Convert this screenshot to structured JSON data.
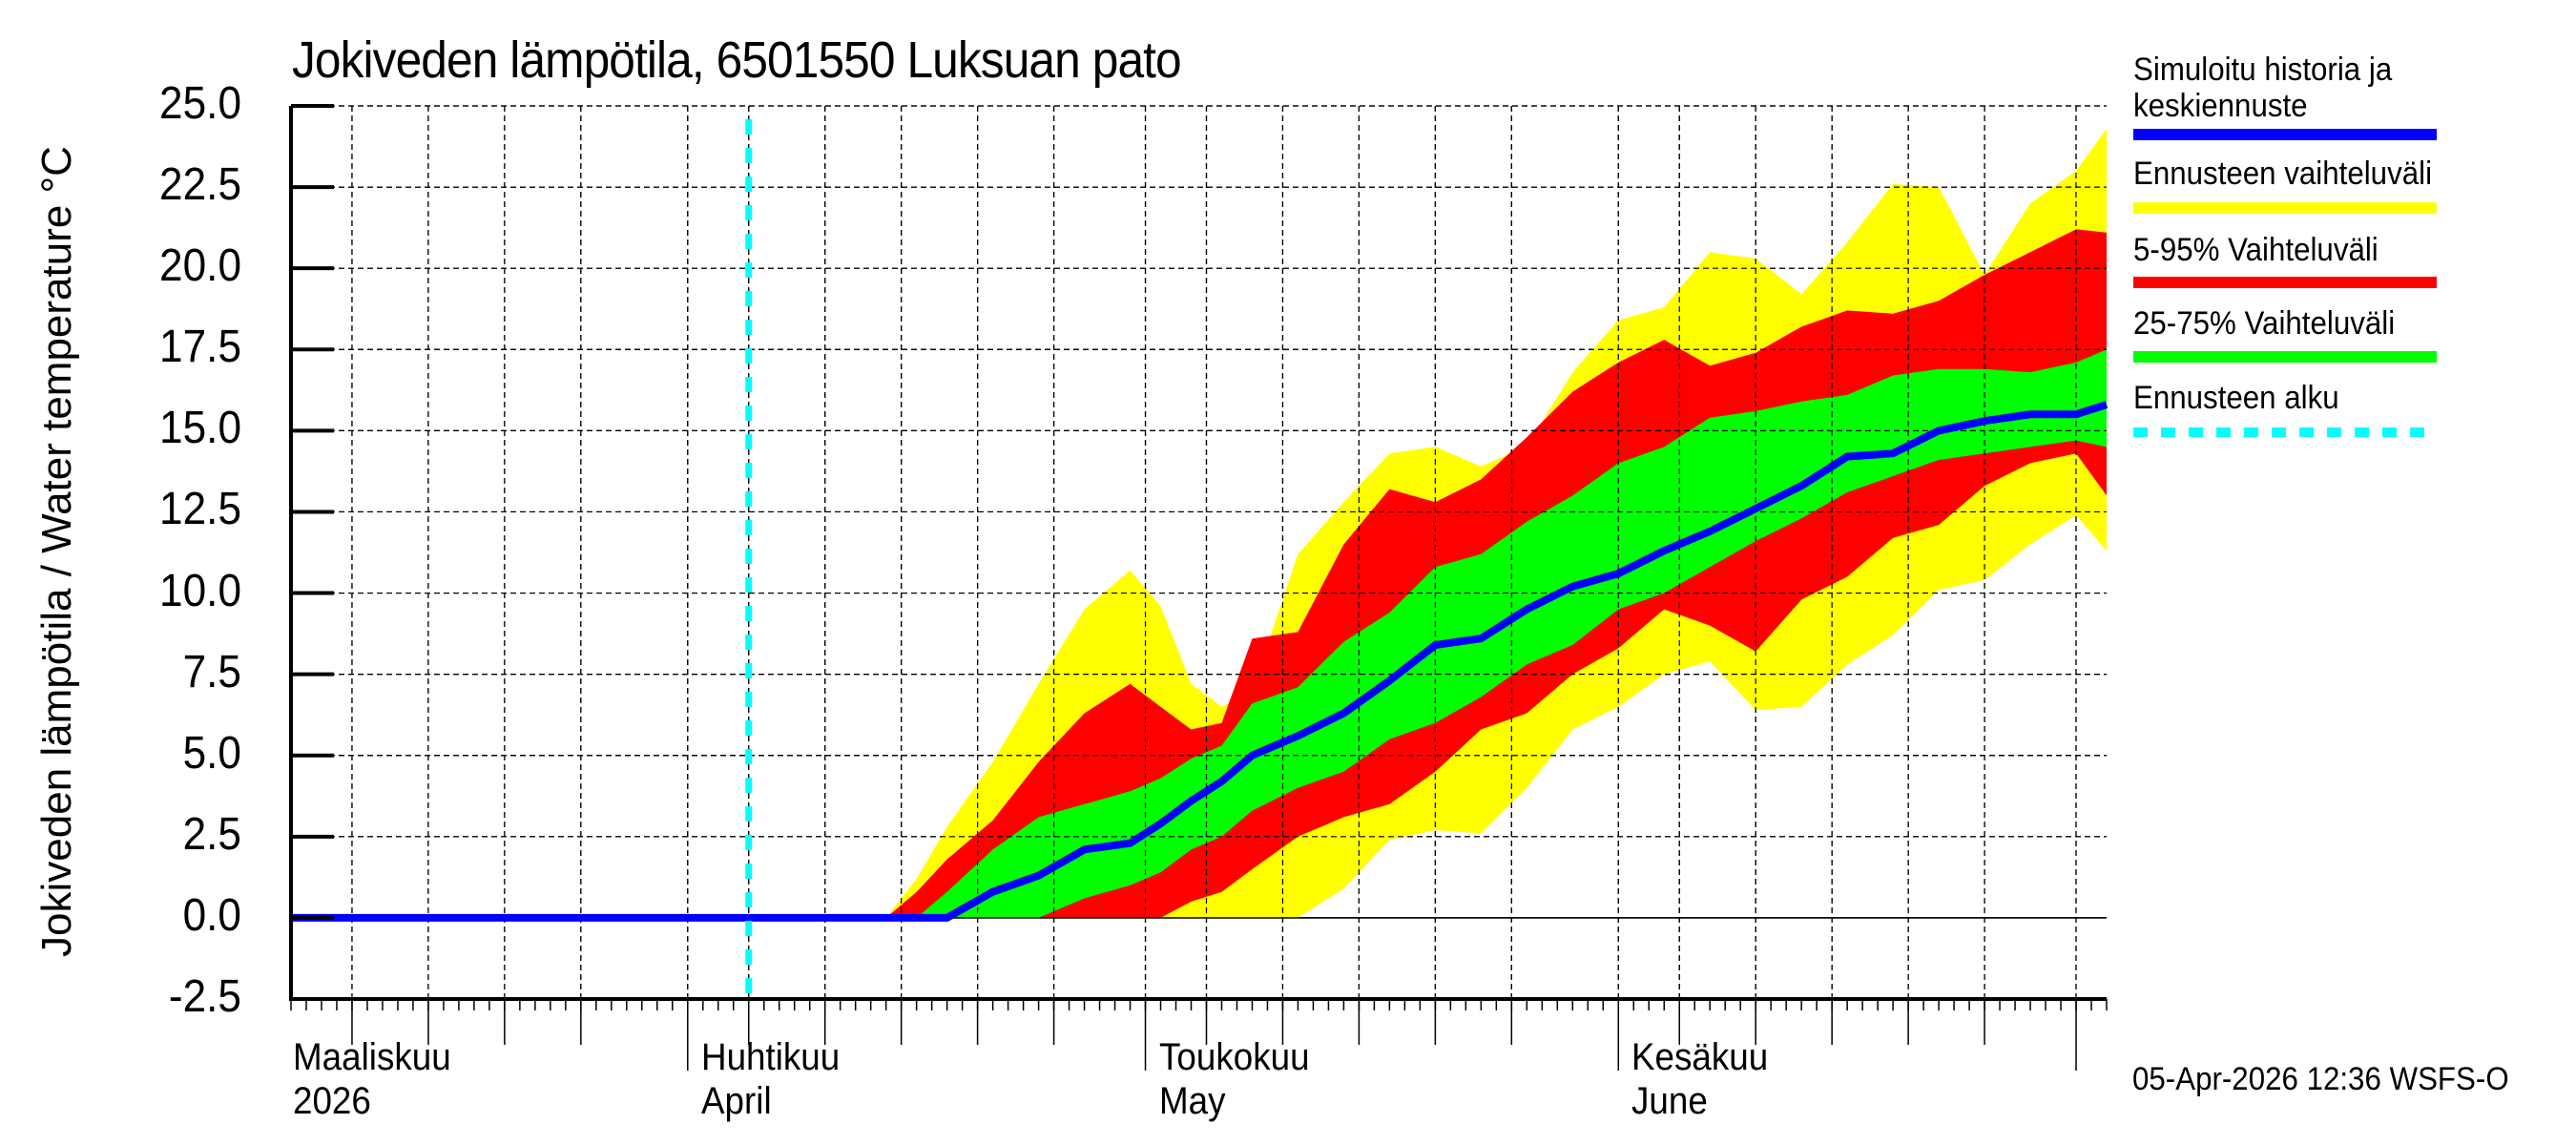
{
  "chart_data": {
    "type": "area",
    "title": "Jokiveden lämpötila, 6501550 Luksuan pato",
    "ylabel": "Jokiveden lämpötila / Water temperature   °C",
    "xlabel": "",
    "ylim": [
      -2.5,
      25.0
    ],
    "yticks": [
      "25.0",
      "22.5",
      "20.0",
      "17.5",
      "15.0",
      "12.5",
      "10.0",
      "7.5",
      "5.0",
      "2.5",
      "0.0",
      "-2.5"
    ],
    "grid": true,
    "legend_position": "right",
    "x_unit": "days since 2026-03-01",
    "xlim": [
      5,
      124
    ],
    "forecast_start_day": 35,
    "months": [
      {
        "fi": "Maaliskuu",
        "en": "2026",
        "day": 0
      },
      {
        "fi": "Huhtikuu",
        "en": "April",
        "day": 31
      },
      {
        "fi": "Toukokuu",
        "en": "May",
        "day": 61
      },
      {
        "fi": "Kesäkuu",
        "en": "June",
        "day": 92
      }
    ],
    "x": [
      5,
      35,
      44,
      46,
      48,
      51,
      54,
      57,
      60,
      62,
      64,
      66,
      68,
      71,
      74,
      77,
      80,
      83,
      86,
      89,
      92,
      95,
      98,
      101,
      104,
      107,
      110,
      113,
      116,
      119,
      122,
      124
    ],
    "series": [
      {
        "name": "Ennusteen vaihteluväli (max)",
        "color": "#ffff00",
        "values": [
          0,
          0,
          0,
          1.2,
          2.8,
          4.8,
          7.2,
          9.5,
          10.7,
          9.6,
          7.2,
          6.5,
          7.0,
          11.2,
          12.8,
          14.3,
          14.5,
          13.9,
          14.5,
          16.8,
          18.4,
          18.8,
          20.5,
          20.3,
          19.2,
          20.8,
          22.6,
          22.5,
          19.8,
          22.0,
          23.0,
          24.3
        ]
      },
      {
        "name": "5-95% Vaihteluväli (95%)",
        "color": "#ff0000",
        "values": [
          0,
          0,
          0,
          0.8,
          1.8,
          3.0,
          4.8,
          6.3,
          7.2,
          6.5,
          5.8,
          6.0,
          8.6,
          8.8,
          11.5,
          13.2,
          12.8,
          13.5,
          14.8,
          16.2,
          17.1,
          17.8,
          17.0,
          17.4,
          18.2,
          18.7,
          18.6,
          19.0,
          19.8,
          20.5,
          21.2,
          21.1
        ]
      },
      {
        "name": "25-75% Vaihteluväli (75%)",
        "color": "#00ff00",
        "values": [
          0,
          0,
          0,
          0,
          0.8,
          2.1,
          3.1,
          3.5,
          3.9,
          4.3,
          4.9,
          5.3,
          6.6,
          7.1,
          8.5,
          9.4,
          10.8,
          11.2,
          12.2,
          13.0,
          14.0,
          14.5,
          15.4,
          15.6,
          15.9,
          16.1,
          16.7,
          16.9,
          16.9,
          16.8,
          17.1,
          17.5
        ]
      },
      {
        "name": "Simuloitu historia ja keskiennuste",
        "color": "#0000ff",
        "values": [
          0,
          0,
          0,
          0,
          0,
          0.8,
          1.3,
          2.1,
          2.3,
          2.9,
          3.6,
          4.2,
          5.0,
          5.6,
          6.3,
          7.3,
          8.4,
          8.6,
          9.5,
          10.2,
          10.6,
          11.3,
          11.9,
          12.6,
          13.3,
          14.2,
          14.3,
          15.0,
          15.3,
          15.5,
          15.5,
          15.8
        ]
      },
      {
        "name": "25-75% Vaihteluväli (25%)",
        "color": "#00ff00",
        "values": [
          0,
          0,
          0,
          0,
          0,
          0,
          0,
          0.6,
          1.0,
          1.4,
          2.1,
          2.5,
          3.3,
          4.0,
          4.5,
          5.5,
          6.0,
          6.8,
          7.8,
          8.4,
          9.5,
          10.0,
          10.8,
          11.6,
          12.3,
          13.1,
          13.6,
          14.1,
          14.3,
          14.5,
          14.7,
          14.5
        ]
      },
      {
        "name": "5-95% Vaihteluväli (5%)",
        "color": "#ff0000",
        "values": [
          0,
          0,
          0,
          0,
          0,
          0,
          0,
          0,
          0,
          0,
          0.5,
          0.8,
          1.5,
          2.5,
          3.1,
          3.5,
          4.5,
          5.8,
          6.3,
          7.5,
          8.3,
          9.5,
          9.0,
          8.2,
          9.8,
          10.5,
          11.7,
          12.1,
          13.3,
          14.0,
          14.3,
          13.0
        ]
      },
      {
        "name": "Ennusteen vaihteluväli (min)",
        "color": "#ffff00",
        "values": [
          0,
          0,
          0,
          0,
          0,
          0,
          0,
          0,
          0,
          0,
          0,
          0,
          0,
          0,
          0.9,
          2.4,
          2.7,
          2.6,
          4.0,
          5.8,
          6.5,
          7.5,
          7.9,
          6.4,
          6.5,
          7.8,
          8.7,
          10.1,
          10.4,
          11.5,
          12.4,
          11.3
        ]
      }
    ]
  },
  "legend": [
    {
      "label_line1": "Simuloitu historia ja",
      "label_line2": "keskiennuste",
      "color": "#0000ff",
      "style": "solid"
    },
    {
      "label_line1": "Ennusteen vaihteluväli",
      "label_line2": "",
      "color": "#ffff00",
      "style": "solid"
    },
    {
      "label_line1": "5-95% Vaihteluväli",
      "label_line2": "",
      "color": "#ff0000",
      "style": "solid"
    },
    {
      "label_line1": "25-75% Vaihteluväli",
      "label_line2": "",
      "color": "#00ff00",
      "style": "solid"
    },
    {
      "label_line1": "Ennusteen alku",
      "label_line2": "",
      "color": "#00ffff",
      "style": "dashed"
    }
  ],
  "footer": "05-Apr-2026 12:36 WSFS-O"
}
